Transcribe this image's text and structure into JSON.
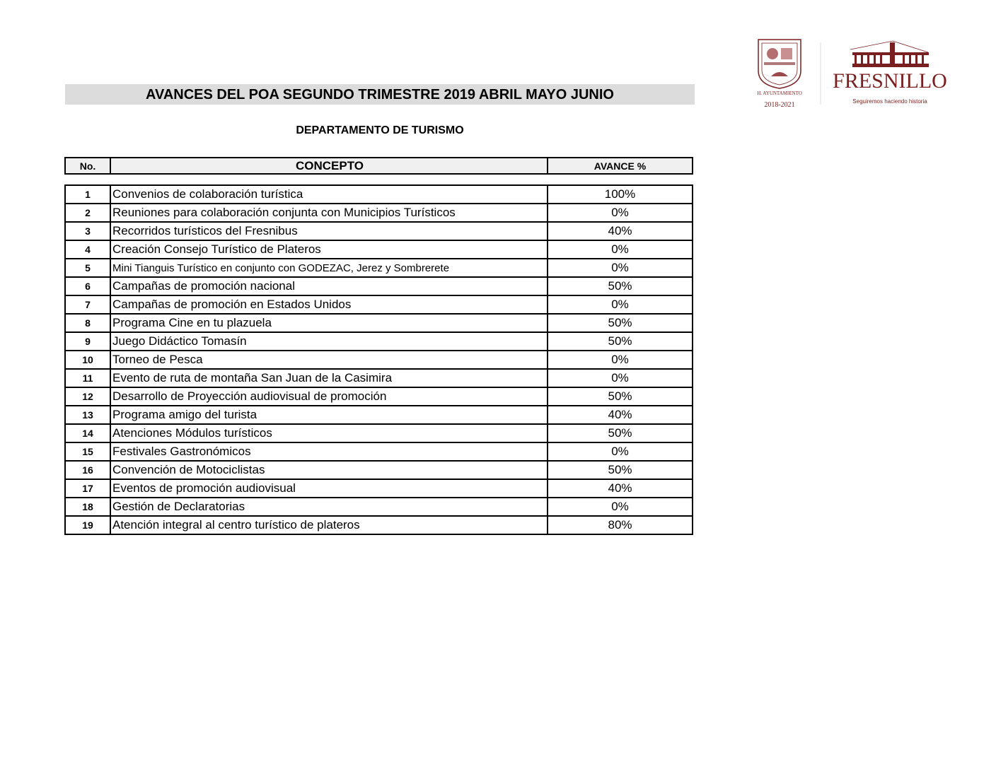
{
  "header": {
    "title": "AVANCES DEL POA SEGUNDO TRIMESTRE 2019 ABRIL MAYO JUNIO",
    "subtitle": "DEPARTAMENTO DE TURISMO"
  },
  "logo": {
    "seal_text": "H. AYUNTAMIENTO",
    "seal_years": "2018-2021",
    "brand": "FRESNILLO",
    "slogan": "Seguiremos haciendo historia",
    "color": "#7a1f1f"
  },
  "table": {
    "columns": [
      "No.",
      "CONCEPTO",
      "AVANCE %"
    ],
    "rows": [
      {
        "no": "1",
        "concepto": "Convenios de colaboración turística",
        "avance": "100%"
      },
      {
        "no": "2",
        "concepto": "Reuniones para colaboración conjunta con Municipios Turísticos",
        "avance": "0%"
      },
      {
        "no": "3",
        "concepto": "Recorridos turísticos del Fresnibus",
        "avance": "40%"
      },
      {
        "no": "4",
        "concepto": "Creación Consejo Turístico de Plateros",
        "avance": "0%"
      },
      {
        "no": "5",
        "concepto": "Mini Tianguis Turístico en conjunto con GODEZAC, Jerez y Sombrerete",
        "avance": "0%"
      },
      {
        "no": "6",
        "concepto": "Campañas de promoción nacional",
        "avance": "50%"
      },
      {
        "no": "7",
        "concepto": "Campañas de promoción en Estados Unidos",
        "avance": "0%"
      },
      {
        "no": "8",
        "concepto": "Programa Cine en tu plazuela",
        "avance": "50%"
      },
      {
        "no": "9",
        "concepto": "Juego Didáctico Tomasín",
        "avance": "50%"
      },
      {
        "no": "10",
        "concepto": "Torneo de Pesca",
        "avance": "0%"
      },
      {
        "no": "11",
        "concepto": "Evento de ruta de montaña San Juan de la Casimira",
        "avance": "0%"
      },
      {
        "no": "12",
        "concepto": "Desarrollo de Proyección audiovisual de promoción",
        "avance": "50%"
      },
      {
        "no": "13",
        "concepto": "Programa amigo del turista",
        "avance": "40%"
      },
      {
        "no": "14",
        "concepto": "Atenciones Módulos turísticos",
        "avance": "50%"
      },
      {
        "no": "15",
        "concepto": "Festivales Gastronómicos",
        "avance": "0%"
      },
      {
        "no": "16",
        "concepto": "Convención de Motociclistas",
        "avance": "50%"
      },
      {
        "no": "17",
        "concepto": "Eventos de promoción audiovisual",
        "avance": "40%"
      },
      {
        "no": "18",
        "concepto": "Gestión de Declaratorias",
        "avance": "0%"
      },
      {
        "no": "19",
        "concepto": "Atención integral al centro turístico de plateros",
        "avance": "80%"
      }
    ]
  }
}
